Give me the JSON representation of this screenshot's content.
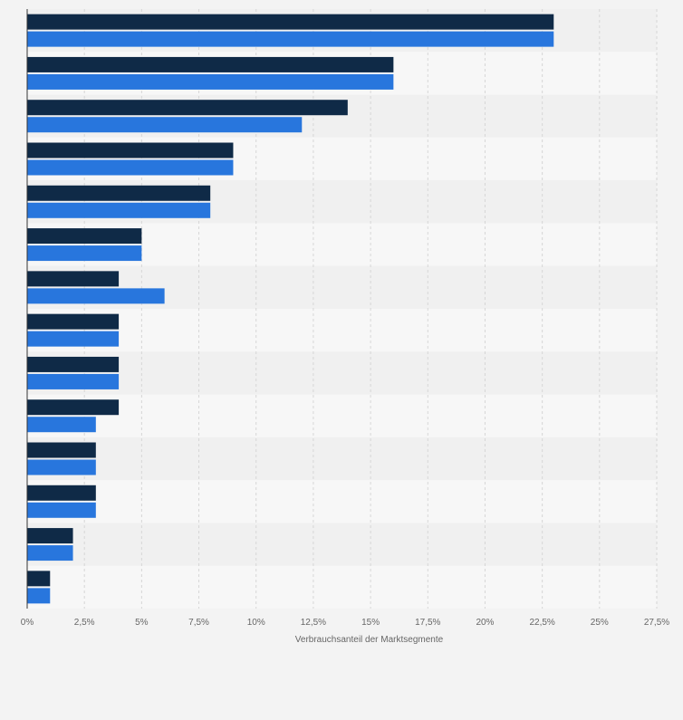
{
  "chart_data": {
    "type": "bar",
    "orientation": "horizontal",
    "categories": [
      "",
      "",
      "",
      "",
      "",
      "",
      "",
      "",
      "",
      "",
      "",
      "",
      "",
      ""
    ],
    "series": [
      {
        "values": [
          23,
          16,
          14,
          9,
          8,
          5,
          4,
          4,
          4,
          4,
          3,
          3,
          2,
          1
        ],
        "color": "#0f2a47"
      },
      {
        "values": [
          23,
          16,
          12,
          9,
          8,
          5,
          6,
          4,
          4,
          3,
          3,
          3,
          2,
          1
        ],
        "color": "#2876dd"
      }
    ],
    "xlim": [
      0,
      27.5
    ],
    "xticks": [
      0,
      2.5,
      5,
      7.5,
      10,
      12.5,
      15,
      17.5,
      20,
      22.5,
      25,
      27.5
    ],
    "xtick_labels": [
      "0%",
      "2,5%",
      "5%",
      "7,5%",
      "10%",
      "12,5%",
      "15%",
      "17,5%",
      "20%",
      "22,5%",
      "25%",
      "27,5%"
    ],
    "xlabel": "Verbrauchsanteil der Marktsegmente",
    "ylabel": "",
    "title": "",
    "grid": true,
    "legend": false
  },
  "colors": {
    "background": "#f3f3f3",
    "band_light": "#f7f7f7",
    "band_dark": "#f0f0f0",
    "grid": "#d6d6d6",
    "axis": "#333333",
    "tick_text": "#666666"
  }
}
